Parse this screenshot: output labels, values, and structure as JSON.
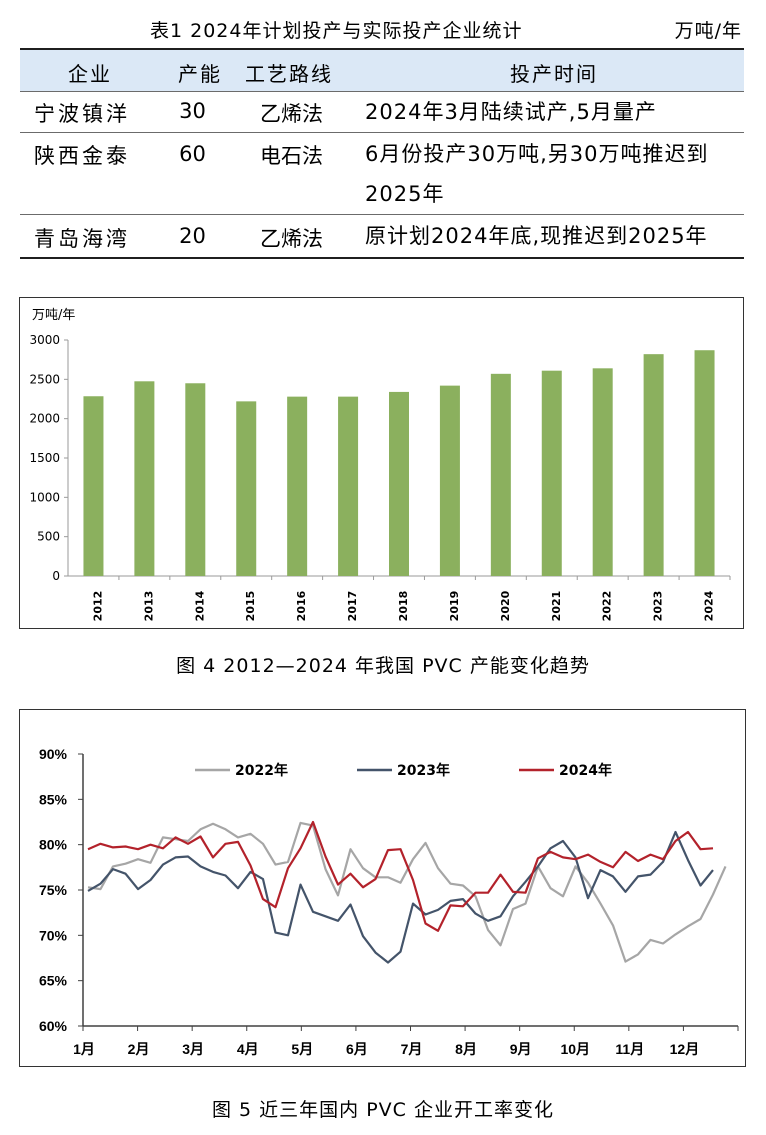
{
  "table": {
    "caption": "表1  2024年计划投产与实际投产企业统计",
    "unit": "万吨/年",
    "headers": [
      "企业",
      "产能",
      "工艺路线",
      "投产时间"
    ],
    "rows": [
      [
        "宁波镇洋",
        "30",
        "乙烯法",
        "2024年3月陆续试产,5月量产"
      ],
      [
        "陕西金泰",
        "60",
        "电石法",
        "6月份投产30万吨,另30万吨推迟到2025年"
      ],
      [
        "青岛海湾",
        "20",
        "乙烯法",
        "原计划2024年底,现推迟到2025年"
      ]
    ]
  },
  "fig4": {
    "caption": "图 4 2012—2024 年我国 PVC 产能变化趋势",
    "chart_data": {
      "type": "bar",
      "unit_label": "万吨/年",
      "categories": [
        "2012",
        "2013",
        "2014",
        "2015",
        "2016",
        "2017",
        "2018",
        "2019",
        "2020",
        "2021",
        "2022",
        "2023",
        "2024"
      ],
      "values": [
        2285,
        2475,
        2450,
        2220,
        2280,
        2280,
        2340,
        2420,
        2570,
        2610,
        2640,
        2820,
        2870
      ],
      "ylim": [
        0,
        3000
      ],
      "yticks": [
        0,
        500,
        1000,
        1500,
        2000,
        2500,
        3000
      ],
      "color": "#8bb05e",
      "grid": false
    }
  },
  "fig5": {
    "caption": "图 5  近三年国内 PVC 企业开工率变化",
    "chart_data": {
      "type": "line",
      "x_labels": [
        "1月",
        "2月",
        "3月",
        "4月",
        "5月",
        "6月",
        "7月",
        "8月",
        "9月",
        "10月",
        "11月",
        "12月"
      ],
      "yticks": [
        "60%",
        "65%",
        "70%",
        "75%",
        "80%",
        "85%",
        "90%"
      ],
      "ylim": [
        60,
        90
      ],
      "legend_position": "top",
      "series": [
        {
          "name": "2022年",
          "color": "#a6a6a6",
          "values": [
            75.3,
            75.1,
            77.6,
            77.9,
            78.4,
            78.0,
            80.8,
            80.6,
            80.4,
            81.7,
            82.3,
            81.7,
            80.8,
            81.2,
            80.1,
            77.8,
            78.1,
            82.4,
            82.1,
            77.3,
            74.4,
            79.5,
            77.4,
            76.4,
            76.4,
            75.8,
            78.4,
            80.2,
            77.4,
            75.7,
            75.5,
            74.3,
            70.6,
            68.9,
            72.9,
            73.5,
            77.6,
            75.2,
            74.3,
            77.6,
            75.8,
            73.5,
            71.1,
            67.1,
            67.9,
            69.5,
            69.1,
            70.1,
            71.0,
            71.8,
            74.5,
            77.6
          ]
        },
        {
          "name": "2023年",
          "color": "#44546a",
          "values": [
            74.9,
            75.7,
            77.3,
            76.8,
            75.1,
            76.1,
            77.8,
            78.6,
            78.7,
            77.6,
            77.0,
            76.6,
            75.2,
            77.0,
            76.2,
            70.3,
            70.0,
            75.6,
            72.6,
            72.1,
            71.6,
            73.4,
            69.9,
            68.1,
            67.0,
            68.2,
            73.5,
            72.3,
            72.8,
            73.8,
            74.0,
            72.4,
            71.6,
            72.1,
            74.3,
            75.9,
            77.6,
            79.6,
            80.4,
            78.6,
            74.1,
            77.2,
            76.5,
            74.8,
            76.5,
            76.7,
            78.1,
            81.4,
            78.3,
            75.5,
            77.2
          ]
        },
        {
          "name": "2024年",
          "color": "#b3222b",
          "values": [
            79.5,
            80.1,
            79.7,
            79.8,
            79.5,
            80.0,
            79.6,
            80.8,
            80.1,
            80.9,
            78.6,
            80.1,
            80.3,
            77.7,
            74.0,
            73.1,
            77.4,
            79.6,
            82.5,
            78.7,
            75.6,
            76.8,
            75.3,
            76.2,
            79.4,
            79.5,
            76.1,
            71.3,
            70.5,
            73.3,
            73.2,
            74.7,
            74.7,
            76.7,
            74.8,
            74.7,
            78.5,
            79.2,
            78.6,
            78.4,
            78.9,
            78.1,
            77.5,
            79.2,
            78.2,
            78.9,
            78.4,
            80.4,
            81.4,
            79.5,
            79.6
          ]
        }
      ]
    }
  }
}
